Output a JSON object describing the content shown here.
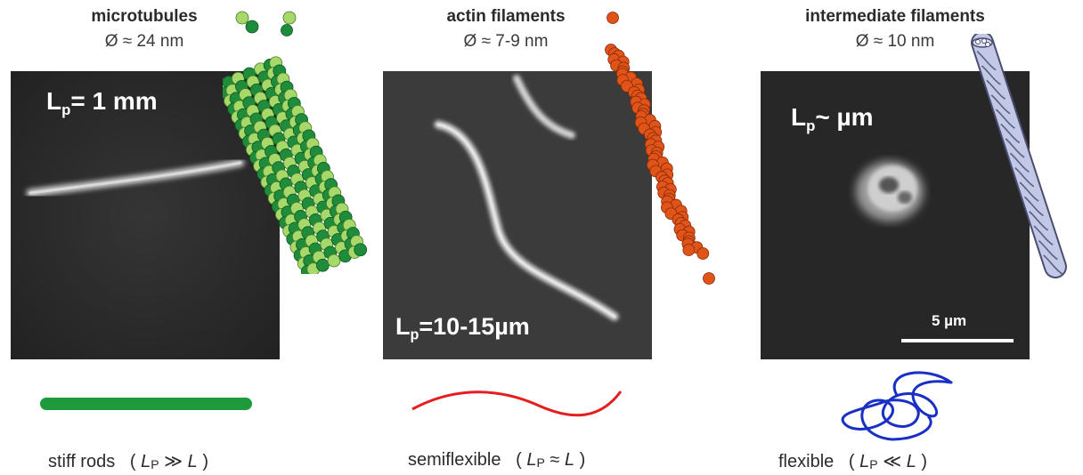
{
  "columns": [
    {
      "title": "microtubules",
      "diameter": "Ø ≈ 24 nm",
      "lp_prefix": "L",
      "lp_sub": "p",
      "lp_value": "= 1 mm",
      "regime_word": "stiff rods",
      "regime_L1": "L",
      "regime_sub": "P",
      "regime_rel": "≫",
      "regime_L2": "L",
      "color": "#1e9a3c"
    },
    {
      "title": "actin filaments",
      "diameter": "Ø ≈ 7-9 nm",
      "lp_prefix": "L",
      "lp_sub": "p",
      "lp_value": "=10-15µm",
      "regime_word": "semiflexible",
      "regime_L1": "L",
      "regime_sub": "P",
      "regime_rel": "≈",
      "regime_L2": "L",
      "color": "#e41e1e"
    },
    {
      "title": "intermediate filaments",
      "diameter": "Ø ≈ 10 nm",
      "lp_prefix": "L",
      "lp_sub": "p",
      "lp_value": "~ µm",
      "regime_word": "flexible",
      "regime_L1": "L",
      "regime_sub": "P",
      "regime_rel": "≪",
      "regime_L2": "L",
      "color": "#1a2fc4"
    }
  ],
  "scale_bar": {
    "label": "5 µm"
  },
  "colors": {
    "panel_bg": "#2a2a2a",
    "microtubule_light": "#a6d96a",
    "microtubule_dark": "#1e8c3a",
    "actin": "#e0541a",
    "if_rope": "#b8c0e0"
  }
}
